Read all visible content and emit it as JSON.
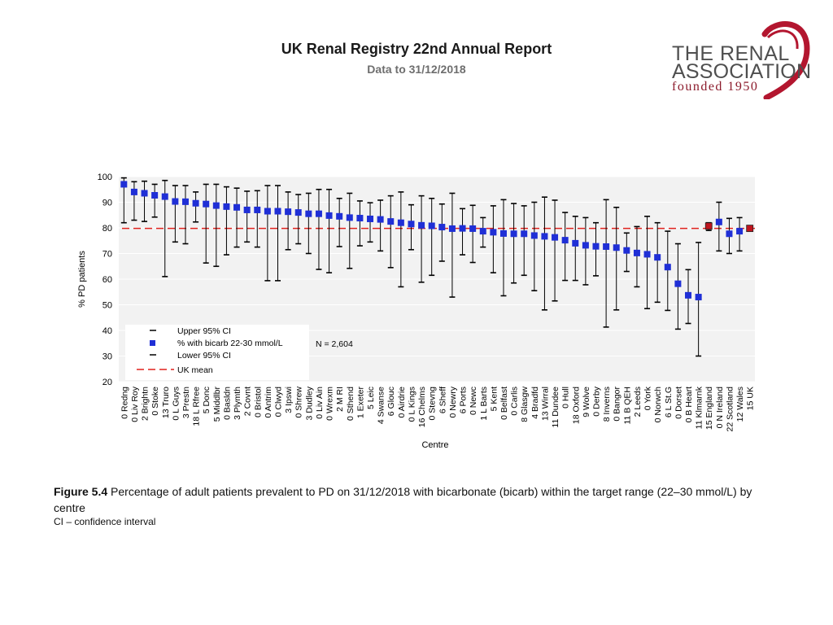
{
  "header": {
    "title": "UK Renal Registry 22nd Annual Report",
    "subtitle": "Data to 31/12/2018"
  },
  "logo": {
    "line1": "THE RENAL",
    "line2": "ASSOCIATION",
    "line3": "founded 1950"
  },
  "colors": {
    "point": "#1f2fd6",
    "highlight": "#c0141e",
    "mean_line": "#e0201c",
    "plot_bg": "#f2f2f2",
    "grid": "#ffffff"
  },
  "chart_data": {
    "type": "scatter",
    "ylabel": "% PD patients",
    "xlabel": "Centre",
    "ylim": [
      20,
      100
    ],
    "yticks": [
      20,
      30,
      40,
      50,
      60,
      70,
      80,
      90,
      100
    ],
    "uk_mean": 79.8,
    "n_label": "N = 2,604",
    "legend": {
      "upper": "Upper 95% CI",
      "point": "% with bicarb 22-30 mmol/L",
      "lower": "Lower 95% CI",
      "mean": "UK mean"
    },
    "categories": [
      "0 Redng",
      "0 Liv Roy",
      "2 Brightn",
      "0 Stoke",
      "13 Truro",
      "0 L Guys",
      "3 Prestn",
      "18 L Rfree",
      "5 Donc",
      "5 Middlbr",
      "0 Basldn",
      "3 Plymth",
      "2 Covnt",
      "0 Bristol",
      "0 Antrim",
      "0 Clwyd",
      "3 Ipswi",
      "0 Shrew",
      "3 Dudley",
      "0 Liv Ain",
      "0 Wrexm",
      "2 M RI",
      "0 Sthend",
      "1 Exeter",
      "5 Leic",
      "4 Swanse",
      "6 Glouc",
      "0 Airdrie",
      "0 L Kings",
      "16 Chelms",
      "0 Stevng",
      "6 Sheff",
      "0 Newry",
      "6 Ports",
      "0 Newc",
      "1 L Barts",
      "5 Kent",
      "0 Belfast",
      "0 Carlis",
      "8 Glasgw",
      "4 Bradfd",
      "13 Wirral",
      "11 Dundee",
      "0 Hull",
      "18 Oxford",
      "9 Wolve",
      "0 Derby",
      "8 Inverns",
      "0 Bangor",
      "11 B QEH",
      "2 Leeds",
      "0 York",
      "0 Norwch",
      "6 L St.G",
      "0 Dorset",
      "0 B Heart",
      "11 Klmarnk",
      "15 England",
      "0 N Ireland",
      "22 Scotland",
      "12 Wales",
      "15 UK"
    ],
    "values": [
      97.0,
      94.0,
      93.5,
      92.7,
      92.2,
      90.3,
      90.2,
      89.6,
      89.3,
      88.7,
      88.3,
      88.0,
      87.0,
      87.0,
      86.5,
      86.5,
      86.3,
      86.0,
      85.5,
      85.5,
      84.8,
      84.5,
      84.0,
      83.8,
      83.5,
      83.3,
      82.5,
      82.0,
      81.5,
      81.0,
      80.8,
      80.3,
      79.7,
      79.8,
      79.7,
      78.7,
      78.3,
      77.8,
      77.7,
      77.7,
      77.0,
      76.7,
      76.3,
      75.2,
      74.0,
      73.2,
      72.8,
      72.7,
      72.3,
      71.2,
      70.2,
      69.7,
      68.5,
      64.7,
      58.2,
      53.7,
      53.0,
      80.7,
      82.3,
      77.7,
      78.7,
      79.8
    ],
    "upper_ci": [
      99.5,
      98.0,
      98.2,
      97.0,
      98.5,
      96.5,
      96.5,
      94.0,
      97.0,
      97.0,
      96.0,
      95.5,
      94.3,
      94.5,
      96.5,
      96.5,
      94.0,
      93.0,
      93.5,
      95.0,
      95.0,
      91.5,
      93.5,
      90.5,
      89.8,
      90.8,
      92.5,
      94.0,
      89.0,
      92.5,
      91.5,
      89.3,
      93.5,
      87.5,
      88.8,
      84.0,
      88.6,
      91.0,
      89.5,
      88.6,
      90.0,
      92.0,
      90.8,
      86.0,
      84.5,
      84.0,
      82.0,
      91.0,
      88.0,
      78.0,
      80.5,
      84.5,
      82.0,
      78.7,
      73.8,
      63.7,
      74.3,
      82.0,
      90.0,
      83.7,
      84.0,
      80.8
    ],
    "lower_ci": [
      82.0,
      83.0,
      82.5,
      84.2,
      61.0,
      74.5,
      73.8,
      82.3,
      66.3,
      65.0,
      69.5,
      72.5,
      74.5,
      72.5,
      59.4,
      59.4,
      71.5,
      73.8,
      70.0,
      63.8,
      62.5,
      72.7,
      64.2,
      73.0,
      74.5,
      71.0,
      64.5,
      57.0,
      71.5,
      58.8,
      61.5,
      67.0,
      53.0,
      69.5,
      66.5,
      72.5,
      62.5,
      53.5,
      58.5,
      61.5,
      55.5,
      48.0,
      51.5,
      59.5,
      59.5,
      57.8,
      61.3,
      41.3,
      48.0,
      63.0,
      57.0,
      48.5,
      51.0,
      47.8,
      40.5,
      42.7,
      30.0,
      79.0,
      71.0,
      70.0,
      71.0,
      78.8
    ],
    "highlight": [
      "15 England",
      "15 UK"
    ]
  },
  "figure": {
    "label": "Figure 5.4",
    "caption": "Percentage of adult patients prevalent to PD on 31/12/2018 with bicarbonate (bicarb) within the target range (22–30 mmol/L) by centre",
    "note": "CI – confidence interval"
  }
}
